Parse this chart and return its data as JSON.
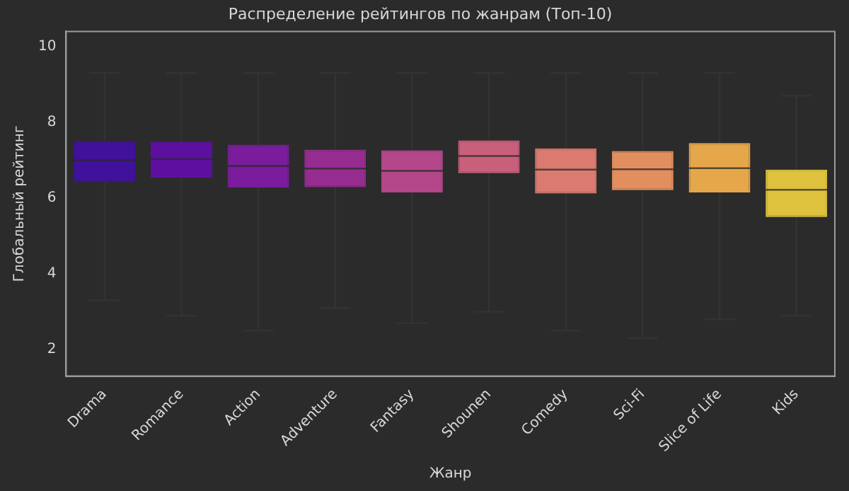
{
  "chart_data": {
    "type": "box",
    "title": "Распределение рейтингов по жанрам (Топ-10)",
    "xlabel": "Жанр",
    "ylabel": "Глобальный рейтинг",
    "categories": [
      "Drama",
      "Romance",
      "Action",
      "Adventure",
      "Fantasy",
      "Shounen",
      "Comedy",
      "Sci-Fi",
      "Slice of Life",
      "Kids"
    ],
    "colors": [
      "#40119a",
      "#5d10a0",
      "#7a1c9b",
      "#962c90",
      "#b3478a",
      "#c9607b",
      "#da7a70",
      "#e38e5e",
      "#e6a74a",
      "#dfc23d"
    ],
    "boxes": [
      {
        "low": 3.3,
        "q1": 6.42,
        "median": 7.0,
        "q3": 7.51,
        "high": 9.3
      },
      {
        "low": 2.9,
        "q1": 6.54,
        "median": 7.03,
        "q3": 7.49,
        "high": 9.3
      },
      {
        "low": 2.5,
        "q1": 6.28,
        "median": 6.85,
        "q3": 7.41,
        "high": 9.3
      },
      {
        "low": 3.1,
        "q1": 6.29,
        "median": 6.78,
        "q3": 7.28,
        "high": 9.3
      },
      {
        "low": 2.7,
        "q1": 6.15,
        "median": 6.72,
        "q3": 7.26,
        "high": 9.3
      },
      {
        "low": 3.0,
        "q1": 6.66,
        "median": 7.11,
        "q3": 7.52,
        "high": 9.3
      },
      {
        "low": 2.5,
        "q1": 6.12,
        "median": 6.75,
        "q3": 7.31,
        "high": 9.3
      },
      {
        "low": 2.3,
        "q1": 6.21,
        "median": 6.76,
        "q3": 7.24,
        "high": 9.3
      },
      {
        "low": 2.8,
        "q1": 6.15,
        "median": 6.79,
        "q3": 7.45,
        "high": 9.3
      },
      {
        "low": 2.9,
        "q1": 5.5,
        "median": 6.22,
        "q3": 6.75,
        "high": 8.7
      }
    ],
    "ylim": [
      1.3,
      10.4
    ],
    "yticks": [
      2,
      4,
      6,
      8,
      10
    ],
    "grid": false,
    "legend": false
  }
}
